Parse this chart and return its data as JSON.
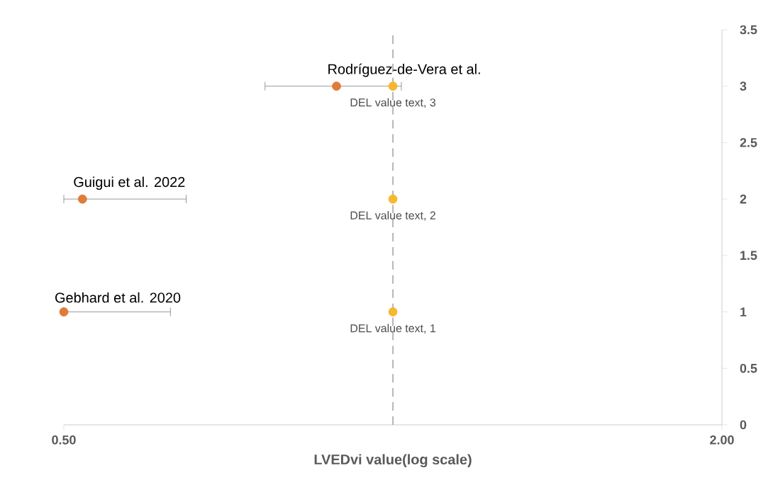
{
  "chart_data": {
    "type": "scatter",
    "xlabel": "LVEDvi value(log scale)",
    "log": "x",
    "xlim": [
      0.5,
      2.0
    ],
    "xticks": [
      {
        "value": 0.5,
        "label": "0.50"
      },
      {
        "value": 2.0,
        "label": "2.00"
      }
    ],
    "ylim": [
      0,
      3.5
    ],
    "yticks": [
      0,
      0.5,
      1,
      1.5,
      2,
      2.5,
      3,
      3.5
    ],
    "marker": "circle",
    "series": [
      {
        "color": "#e07b39",
        "x": [
          0.5,
          0.52,
          0.888
        ],
        "values": [
          1,
          2,
          3
        ],
        "xerrors": [
          [
            0.5,
            0.626
          ],
          [
            0.5,
            0.647
          ],
          [
            0.764,
            1.018
          ]
        ]
      },
      {
        "color": "#f5b82e",
        "x": [
          1,
          1,
          1
        ],
        "values": [
          1,
          2,
          3
        ],
        "value_labels": [
          "DEL value text, 1",
          "DEL value text, 2",
          "DEL value text, 3"
        ]
      }
    ],
    "ref_lines": [
      {
        "axis": "x",
        "value": 1,
        "color": "#a6a6a6",
        "line_style": "dashed"
      }
    ],
    "annotations": [
      {
        "text": "Gebhard et al. 2020",
        "x": 0.5,
        "y": 1
      },
      {
        "text": "Guigui et al. 2022",
        "x": 0.52,
        "y": 2
      },
      {
        "text": "Rodríguez-de-Vera et al.",
        "x": 0.888,
        "y": 3
      }
    ]
  }
}
